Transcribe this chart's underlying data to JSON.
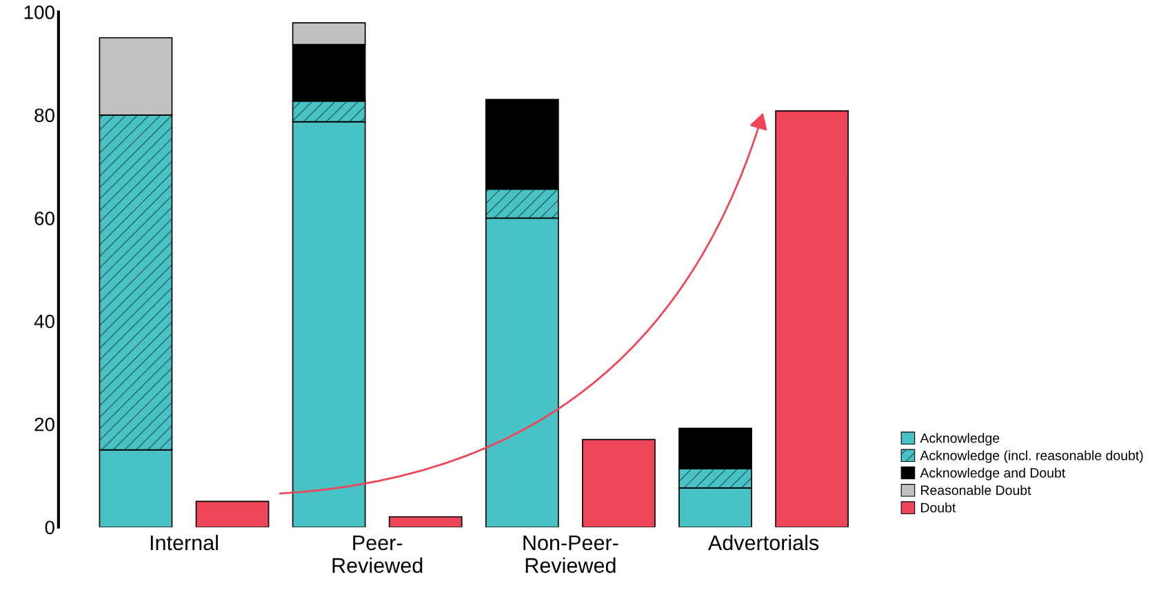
{
  "chart_data": {
    "type": "bar",
    "stacked": true,
    "categories": [
      "Internal",
      null,
      "Peer-\nReviewed",
      null,
      "Non-Peer-\nReviewed",
      null,
      "Advertorials",
      null
    ],
    "series": [
      {
        "name": "Acknowledge",
        "color": "#48c2c5",
        "values": [
          15,
          null,
          78.7,
          null,
          60,
          null,
          7.6,
          null
        ]
      },
      {
        "name": "Acknowledge (incl. reasonable doubt)",
        "color": "#48c2c5",
        "values": [
          65,
          null,
          4,
          null,
          5.6,
          null,
          3.7,
          null
        ]
      },
      {
        "name": "Acknowledge and Doubt",
        "color": "#000000",
        "values": [
          null,
          null,
          11,
          null,
          17.4,
          null,
          7.9,
          null
        ]
      },
      {
        "name": "Reasonable Doubt",
        "color": "#c0c0c0",
        "values": [
          15,
          null,
          4.2,
          null,
          null,
          null,
          null,
          null
        ]
      },
      {
        "name": "Doubt",
        "color": "#ee4558",
        "values": [
          null,
          5,
          null,
          2,
          null,
          17,
          null,
          80.8
        ]
      }
    ],
    "ylim": [
      0,
      100
    ],
    "yticks": [
      0,
      20,
      40,
      60,
      80,
      100
    ],
    "grid": false,
    "legend": "bottom right"
  }
}
